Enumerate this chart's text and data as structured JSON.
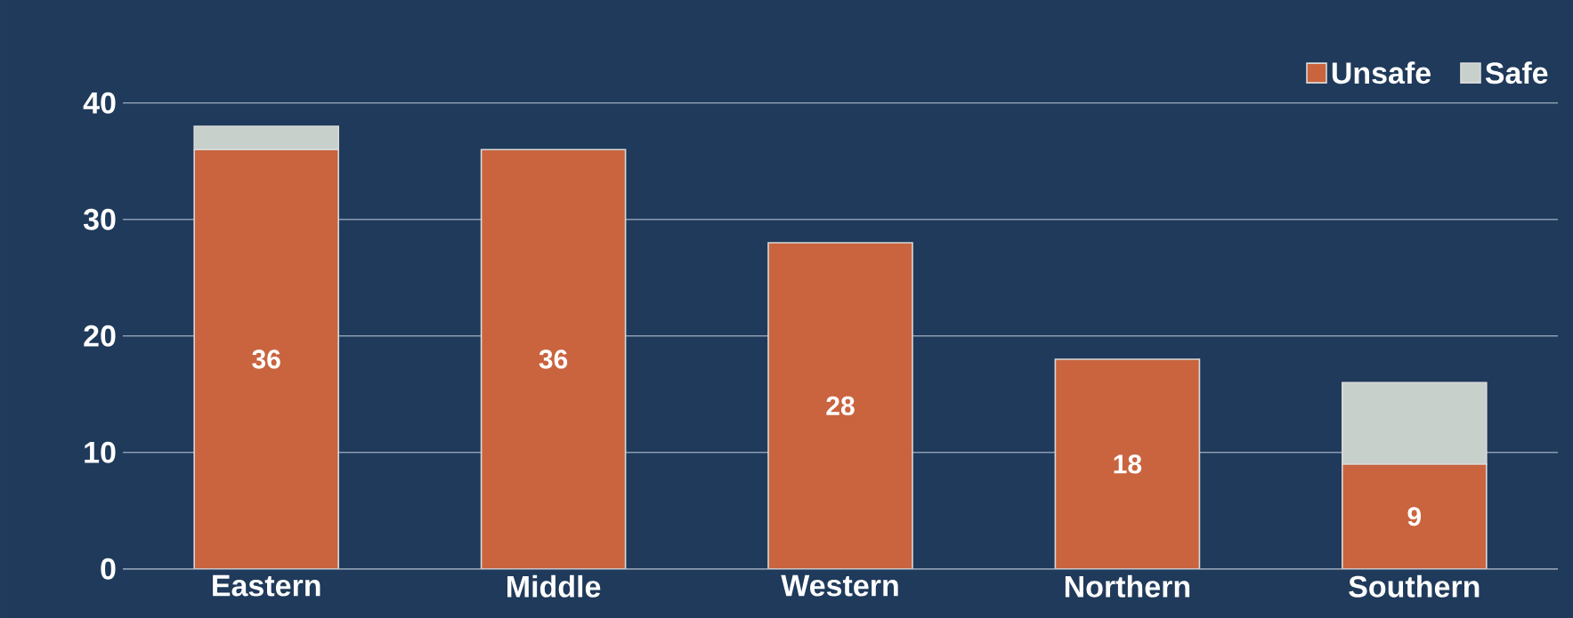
{
  "chart_data": {
    "type": "bar",
    "stacked": true,
    "categories": [
      "Eastern",
      "Middle",
      "Western",
      "Northern",
      "Southern"
    ],
    "series": [
      {
        "name": "Unsafe",
        "color": "#c9643f",
        "values": [
          36,
          36,
          28,
          18,
          9
        ],
        "value_labels": [
          "36",
          "36",
          "28",
          "18",
          "9"
        ]
      },
      {
        "name": "Safe",
        "color": "#c8d0cc",
        "values": [
          2,
          0,
          0,
          0,
          7
        ]
      }
    ],
    "ylim": [
      0,
      40
    ],
    "yticks": [
      0,
      10,
      20,
      30,
      40
    ],
    "grid": "y",
    "legend": "top right"
  }
}
